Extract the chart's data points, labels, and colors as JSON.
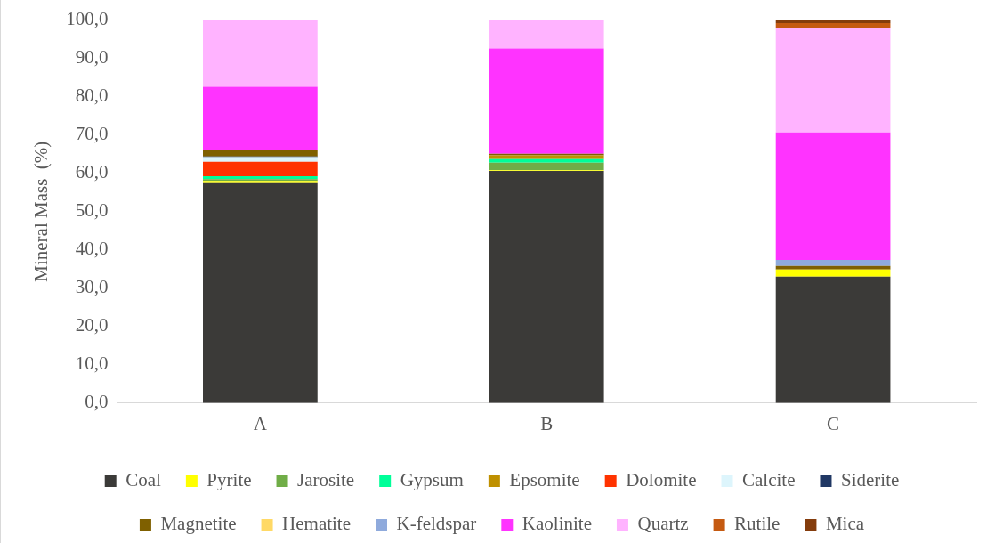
{
  "chart_data": {
    "type": "bar",
    "stacked": true,
    "ylabel": "Mineral Mass  (%)",
    "categories": [
      "A",
      "B",
      "C"
    ],
    "ylim": [
      0,
      100
    ],
    "yticks": [
      {
        "value": 0,
        "label": "0,0"
      },
      {
        "value": 10,
        "label": "10,0"
      },
      {
        "value": 20,
        "label": "20,0"
      },
      {
        "value": 30,
        "label": "30,0"
      },
      {
        "value": 40,
        "label": "40,0"
      },
      {
        "value": 50,
        "label": "50,0"
      },
      {
        "value": 60,
        "label": "60,0"
      },
      {
        "value": 70,
        "label": "70,0"
      },
      {
        "value": 80,
        "label": "80,0"
      },
      {
        "value": 90,
        "label": "90,0"
      },
      {
        "value": 100,
        "label": "100,0"
      }
    ],
    "grid": false,
    "legend": "bottom",
    "series": [
      {
        "name": "Coal",
        "color": "#3b3a38",
        "values": [
          57.4,
          60.6,
          33.0
        ]
      },
      {
        "name": "Pyrite",
        "color": "#ffff00",
        "values": [
          0.6,
          0.2,
          1.9
        ]
      },
      {
        "name": "Jarosite",
        "color": "#70ad47",
        "values": [
          0.5,
          2.0,
          0
        ]
      },
      {
        "name": "Gypsum",
        "color": "#00ff99",
        "values": [
          0.7,
          0.9,
          0
        ]
      },
      {
        "name": "Epsomite",
        "color": "#bf9000",
        "values": [
          0,
          1.0,
          0
        ]
      },
      {
        "name": "Dolomite",
        "color": "#ff3300",
        "values": [
          3.8,
          0,
          0
        ]
      },
      {
        "name": "Calcite",
        "color": "#ddf5fc",
        "values": [
          1.2,
          0,
          0
        ]
      },
      {
        "name": "Siderite",
        "color": "#203864",
        "values": [
          0.2,
          0,
          0
        ]
      },
      {
        "name": "Magnetite",
        "color": "#7f6000",
        "values": [
          1.7,
          0.4,
          0.9
        ]
      },
      {
        "name": "Hematite",
        "color": "#ffd966",
        "values": [
          0,
          0,
          0
        ]
      },
      {
        "name": "K-feldspar",
        "color": "#8faadc",
        "values": [
          0,
          0,
          1.6
        ]
      },
      {
        "name": "Kaolinite",
        "color": "#ff33ff",
        "values": [
          16.5,
          27.5,
          33.3
        ]
      },
      {
        "name": "Quartz",
        "color": "#ffb3ff",
        "values": [
          17.4,
          7.4,
          27.3
        ]
      },
      {
        "name": "Rutile",
        "color": "#c55a11",
        "values": [
          0,
          0,
          1.2
        ]
      },
      {
        "name": "Mica",
        "color": "#843c0c",
        "values": [
          0,
          0,
          0.8
        ]
      }
    ]
  }
}
